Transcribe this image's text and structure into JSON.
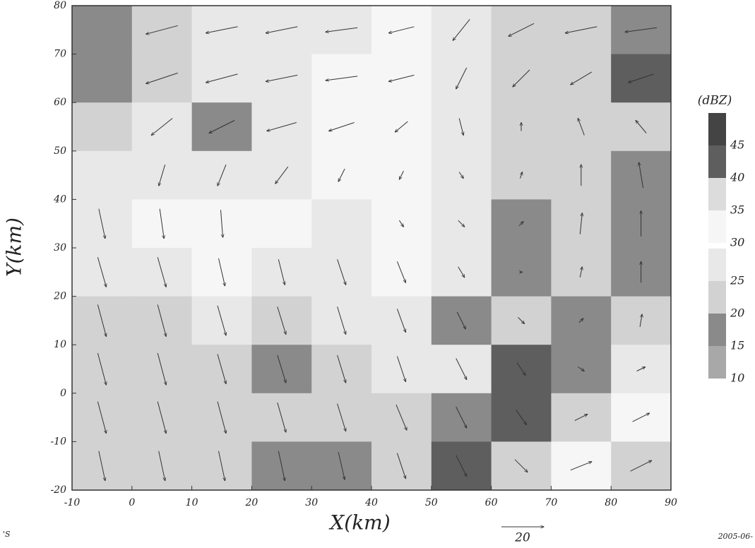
{
  "chart_data": {
    "type": "contour-vector",
    "xlabel": "X(km)",
    "ylabel": "Y(km)",
    "xlim": [
      -10,
      90
    ],
    "ylim": [
      -20,
      80
    ],
    "xticks": [
      -10,
      0,
      10,
      20,
      30,
      40,
      50,
      60,
      70,
      80,
      90
    ],
    "yticks": [
      -20,
      -10,
      0,
      10,
      20,
      30,
      40,
      50,
      60,
      70,
      80
    ],
    "x": [
      -5,
      5,
      15,
      25,
      35,
      45,
      55,
      65,
      75,
      85
    ],
    "y": [
      75,
      65,
      55,
      45,
      35,
      25,
      15,
      5,
      -5,
      -15
    ],
    "colorbar": {
      "title": "(dBZ)",
      "levels": [
        10,
        15,
        20,
        25,
        30,
        35,
        40,
        45
      ],
      "colors": [
        "#a8a8a8",
        "#8a8a8a",
        "#d2d2d2",
        "#e8e8e8",
        "#f6f6f6",
        "#dcdcdc",
        "#5e5e5e",
        "#444444"
      ]
    },
    "dbz": [
      [
        15,
        20,
        25,
        25,
        25,
        30,
        25,
        20,
        20,
        15
      ],
      [
        15,
        20,
        25,
        25,
        30,
        30,
        25,
        20,
        20,
        40
      ],
      [
        20,
        25,
        15,
        25,
        30,
        30,
        25,
        20,
        20,
        20
      ],
      [
        25,
        25,
        25,
        25,
        30,
        30,
        25,
        20,
        20,
        15
      ],
      [
        25,
        30,
        30,
        30,
        25,
        30,
        25,
        15,
        20,
        15
      ],
      [
        25,
        25,
        30,
        25,
        25,
        30,
        25,
        15,
        20,
        15
      ],
      [
        20,
        20,
        25,
        20,
        25,
        25,
        15,
        20,
        15,
        20
      ],
      [
        20,
        20,
        20,
        15,
        20,
        25,
        25,
        40,
        15,
        25
      ],
      [
        20,
        20,
        20,
        20,
        20,
        20,
        15,
        40,
        20,
        30
      ],
      [
        20,
        20,
        20,
        15,
        15,
        20,
        40,
        20,
        30,
        20
      ]
    ],
    "wind": {
      "u": [
        [
          null,
          -15,
          -15,
          -15,
          -15,
          -12,
          -8,
          -12,
          -15,
          -15
        ],
        [
          null,
          -15,
          -15,
          -15,
          -15,
          -12,
          -5,
          -8,
          -10,
          -12
        ],
        [
          null,
          -10,
          -12,
          -14,
          -12,
          -6,
          2,
          0,
          -3,
          -5
        ],
        [
          null,
          -3,
          -4,
          -6,
          -3,
          -2,
          2,
          1,
          0,
          -2
        ],
        [
          3,
          2,
          1,
          null,
          null,
          2,
          3,
          2,
          1,
          0
        ],
        [
          4,
          4,
          3,
          3,
          4,
          4,
          3,
          1,
          1,
          0
        ],
        [
          4,
          4,
          4,
          4,
          4,
          4,
          4,
          3,
          2,
          1
        ],
        [
          4,
          4,
          4,
          4,
          4,
          4,
          5,
          4,
          3,
          4
        ],
        [
          4,
          4,
          4,
          4,
          4,
          5,
          5,
          5,
          6,
          8
        ],
        [
          3,
          3,
          3,
          3,
          3,
          4,
          5,
          6,
          10,
          10
        ]
      ],
      "v": [
        [
          null,
          -4,
          -3,
          -3,
          -2,
          -3,
          -10,
          -6,
          -3,
          -2
        ],
        [
          null,
          -5,
          -4,
          -3,
          -2,
          -3,
          -10,
          -8,
          -6,
          -4
        ],
        [
          null,
          -8,
          -6,
          -4,
          -4,
          -5,
          -8,
          4,
          8,
          6
        ],
        [
          null,
          -10,
          -10,
          -8,
          -6,
          -4,
          -3,
          3,
          10,
          12
        ],
        [
          -14,
          -14,
          -13,
          null,
          null,
          -3,
          -3,
          2,
          10,
          12
        ],
        [
          -14,
          -14,
          -13,
          -12,
          -12,
          -10,
          -5,
          0,
          5,
          10
        ],
        [
          -15,
          -15,
          -14,
          -13,
          -13,
          -11,
          -8,
          -3,
          2,
          6
        ],
        [
          -15,
          -15,
          -14,
          -13,
          -13,
          -12,
          -10,
          -6,
          -2,
          2
        ],
        [
          -15,
          -15,
          -15,
          -14,
          -13,
          -12,
          -10,
          -7,
          3,
          4
        ],
        [
          -14,
          -14,
          -14,
          -14,
          -13,
          -12,
          -10,
          -6,
          4,
          5
        ]
      ]
    },
    "reference_vector": 20,
    "footer_left": "'S",
    "footer_right": "2005-06-"
  }
}
